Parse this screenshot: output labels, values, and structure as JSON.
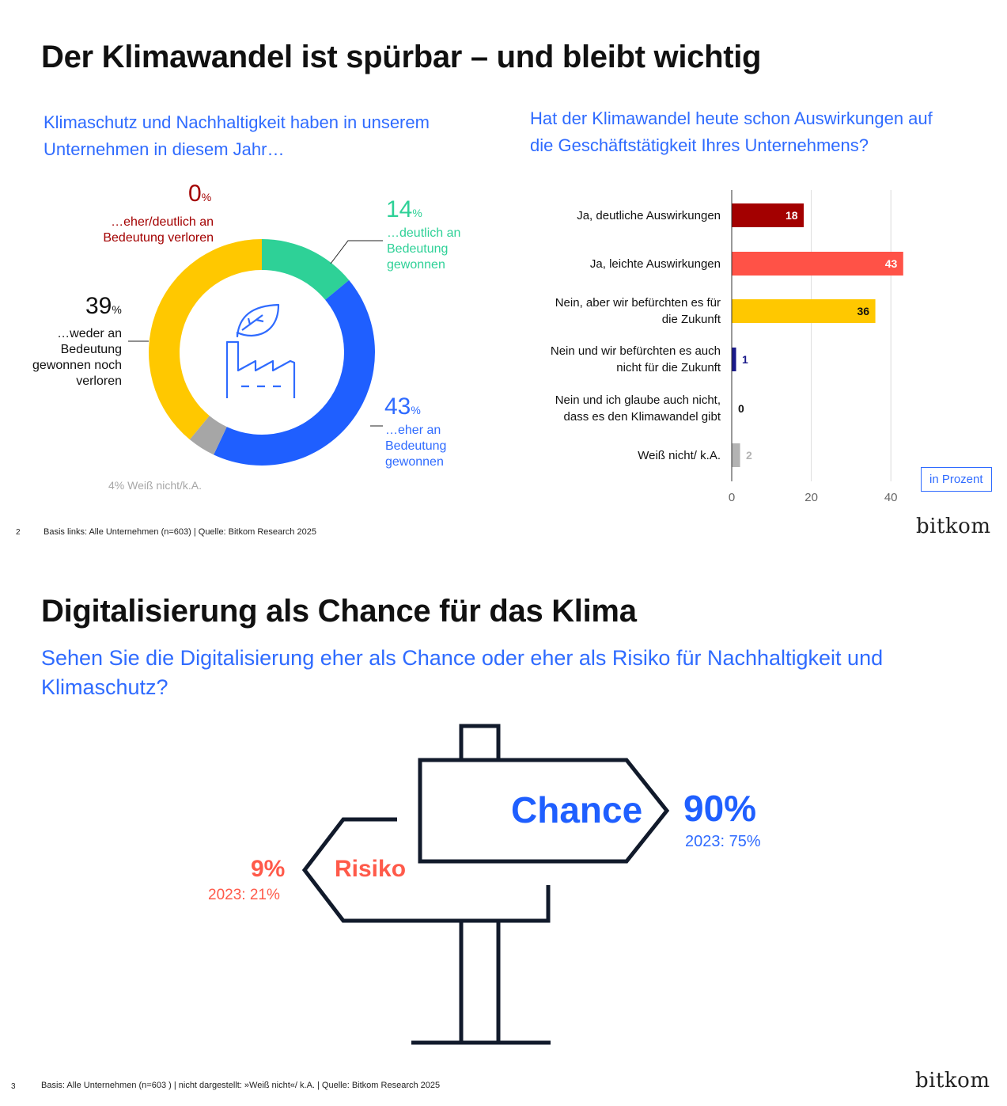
{
  "slide1": {
    "title": "Der Klimawandel ist spürbar – und bleibt wichtig",
    "left_question_line1": "Klimaschutz und Nachhaltigkeit haben in unserem",
    "left_question_line2": "Unternehmen in diesem Jahr…",
    "right_question_line1": "Hat der Klimawandel heute schon Auswirkungen auf",
    "right_question_line2": "die Geschäftstätigkeit Ihres Unternehmens?",
    "donut_labels": {
      "lost": {
        "value": "0",
        "unit": "%",
        "line1": "…eher/deutlich an",
        "line2": "Bedeutung verloren"
      },
      "strong": {
        "value": "14",
        "unit": "%",
        "line1": "…deutlich an",
        "line2": "Bedeutung",
        "line3": "gewonnen"
      },
      "rather": {
        "value": "43",
        "unit": "%",
        "line1": "…eher an",
        "line2": "Bedeutung",
        "line3": "gewonnen"
      },
      "neither": {
        "value": "39",
        "unit": "%",
        "line1": "…weder an",
        "line2": "Bedeutung",
        "line3": "gewonnen noch",
        "line4": "verloren"
      },
      "dontknow": "4% Weiß nicht/k.A."
    },
    "legend": "in Prozent",
    "footer": "Basis links: Alle Unternehmen (n=603) | Quelle: Bitkom Research 2025",
    "page": "2",
    "logo": "bitkom"
  },
  "slide2": {
    "title": "Digitalisierung als Chance für das Klima",
    "question_line1": "Sehen Sie die Digitalisierung eher als Chance oder eher als Risiko für Nachhaltigkeit und",
    "question_line2": "Klimaschutz?",
    "chance_label": "Chance",
    "chance_value": "90%",
    "chance_prev": "2023: 75%",
    "risk_label": "Risiko",
    "risk_value": "9%",
    "risk_prev": "2023: 21%",
    "footer": "Basis: Alle Unternehmen (n=603 ) | nicht dargestellt: »Weiß nicht«/ k.A. | Quelle: Bitkom Research 2025",
    "page": "3",
    "logo": "bitkom"
  },
  "colors": {
    "accent_blue": "#2f6bff",
    "dark_red": "#a30000",
    "red": "#ff5a4a",
    "yellow": "#ffc800",
    "green": "#2ed197",
    "grey": "#b3b3b3",
    "navy": "#1a1a8a"
  },
  "chart_data": [
    {
      "type": "pie",
      "variant": "donut",
      "categories": [
        "…deutlich an Bedeutung gewonnen",
        "…eher an Bedeutung gewonnen",
        "Weiß nicht/k.A.",
        "…weder an Bedeutung gewonnen noch verloren",
        "…eher/deutlich an Bedeutung verloren"
      ],
      "values": [
        14,
        43,
        4,
        39,
        0
      ],
      "colors": [
        "#2ed197",
        "#1f5fff",
        "#a6a6a6",
        "#ffc800",
        "#a30000"
      ],
      "center_icon": "leaf-factory-icon"
    },
    {
      "type": "bar",
      "orientation": "horizontal",
      "categories": [
        "Ja, deutliche Auswirkungen",
        "Ja, leichte Auswirkungen",
        "Nein, aber wir befürchten es für die Zukunft",
        "Nein und wir befürchten es auch nicht für die Zukunft",
        "Nein und ich glaube auch nicht, dass es den Klimawandel gibt",
        "Weiß nicht/ k.A."
      ],
      "values": [
        18,
        43,
        36,
        1,
        0,
        2
      ],
      "colors": [
        "#a30000",
        "#ff5247",
        "#ffc800",
        "#1a1a8a",
        "#111111",
        "#b3b3b3"
      ],
      "xticks": [
        0,
        20,
        40
      ],
      "xlim": [
        0,
        40
      ],
      "grid": true,
      "legend": "in Prozent"
    }
  ]
}
